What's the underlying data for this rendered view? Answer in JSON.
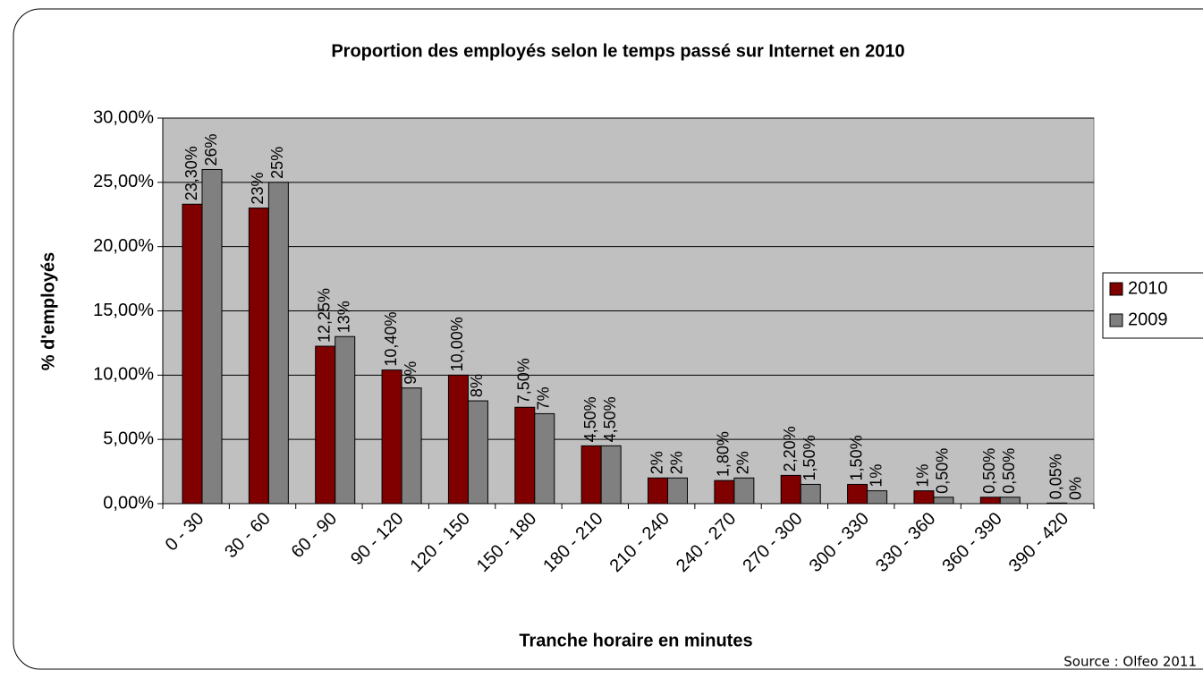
{
  "chart_data": {
    "type": "bar",
    "title": "Proportion des employés selon le temps passé sur Internet en 2010",
    "x_label": "Tranche horaire en minutes",
    "y_label": "% d'employés",
    "source": "Source : Olfeo 2011",
    "categories": [
      "0 - 30",
      "30 - 60",
      "60 - 90",
      "90 - 120",
      "120 - 150",
      "150 - 180",
      "180 - 210",
      "210 - 240",
      "240 - 270",
      "270 - 300",
      "300 - 330",
      "330 - 360",
      "360 - 390",
      "390 - 420"
    ],
    "series": [
      {
        "name": "2010",
        "color": "#800000",
        "values": [
          23.3,
          23,
          12.25,
          10.4,
          10,
          7.5,
          4.5,
          2,
          1.8,
          2.2,
          1.5,
          1,
          0.5,
          0.05
        ],
        "value_labels": [
          "23,30%",
          "23%",
          "12,25%",
          "10,40%",
          "10,00%",
          "7,50%",
          "4,50%",
          "2%",
          "1,80%",
          "2,20%",
          "1,50%",
          "1%",
          "0,50%",
          "0,05%"
        ]
      },
      {
        "name": "2009",
        "color": "#808080",
        "values": [
          26,
          25,
          13,
          9,
          8,
          7,
          4.5,
          2,
          2,
          1.5,
          1,
          0.5,
          0.5,
          0
        ],
        "value_labels": [
          "26%",
          "25%",
          "13%",
          "9%",
          "8%",
          "7%",
          "4,50%",
          "2%",
          "2%",
          "1,50%",
          "1%",
          "0,50%",
          "0,50%",
          "0%"
        ]
      }
    ],
    "ylim": [
      0,
      30
    ],
    "yticks": [
      {
        "value": 0,
        "label": "0,00%"
      },
      {
        "value": 5,
        "label": "5,00%"
      },
      {
        "value": 10,
        "label": "10,00%"
      },
      {
        "value": 15,
        "label": "15,00%"
      },
      {
        "value": 20,
        "label": "20,00%"
      },
      {
        "value": 25,
        "label": "25,00%"
      },
      {
        "value": 30,
        "label": "30,00%"
      }
    ],
    "grid": true,
    "plot_background": "#c0c0c0",
    "legend": "right"
  }
}
